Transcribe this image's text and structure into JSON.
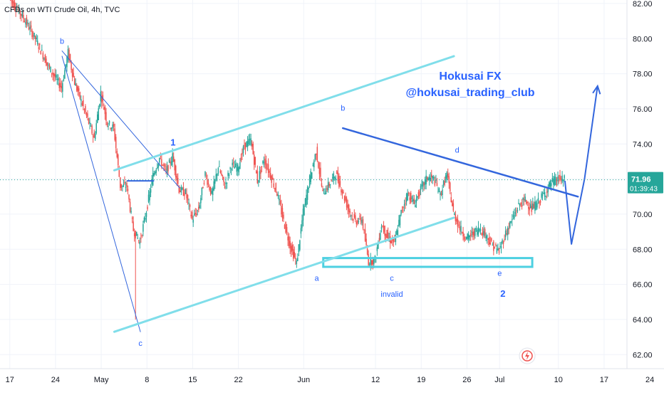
{
  "chart_data": {
    "type": "candlestick",
    "symbol_label": "CFDs on WTI Crude Oil, 4h, TVC",
    "watermark_line1": "Hokusai FX",
    "watermark_line2": "@hokusai_trading_club",
    "ylim": [
      61.2,
      82.2
    ],
    "xlim": [
      -1.5,
      94.5
    ],
    "y_ticks": [
      "62.00",
      "64.00",
      "66.00",
      "68.00",
      "70.00",
      "72.00",
      "74.00",
      "76.00",
      "78.00",
      "80.00",
      "82.00"
    ],
    "x_ticks": [
      {
        "label": "17",
        "day": 0
      },
      {
        "label": "24",
        "day": 7
      },
      {
        "label": "May",
        "day": 14
      },
      {
        "label": "8",
        "day": 21
      },
      {
        "label": "15",
        "day": 28
      },
      {
        "label": "22",
        "day": 35
      },
      {
        "label": "Jun",
        "day": 45
      },
      {
        "label": "12",
        "day": 56
      },
      {
        "label": "19",
        "day": 63
      },
      {
        "label": "26",
        "day": 70
      },
      {
        "label": "Jul",
        "day": 75
      },
      {
        "label": "10",
        "day": 84
      },
      {
        "label": "17",
        "day": 91
      },
      {
        "label": "24",
        "day": 98
      }
    ],
    "last_price": {
      "value": 71.96,
      "label": "71.96",
      "countdown": "01:39:43"
    },
    "colors": {
      "up": "#26a69a",
      "down": "#ef5350",
      "trend_dark": "#3366dd",
      "trend_light": "#80deea",
      "channel": "#4dd0e1",
      "dotted": "#26a69a",
      "label": "#2962ff"
    },
    "path": [
      [
        0,
        82.3
      ],
      [
        2,
        81.3
      ],
      [
        4,
        80.0
      ],
      [
        6,
        78.4
      ],
      [
        8,
        77.2
      ],
      [
        9,
        79.2
      ],
      [
        10,
        77.5
      ],
      [
        12,
        75.4
      ],
      [
        13,
        74.3
      ],
      [
        14,
        76.9
      ],
      [
        15,
        75.2
      ],
      [
        16,
        74.9
      ],
      [
        17,
        71.6
      ],
      [
        18,
        71.6
      ],
      [
        19,
        69.1
      ],
      [
        20,
        68.4
      ],
      [
        21,
        70.2
      ],
      [
        22,
        72.2
      ],
      [
        23,
        73.2
      ],
      [
        24,
        72.4
      ],
      [
        25,
        73.3
      ],
      [
        26,
        71.4
      ],
      [
        27,
        71.2
      ],
      [
        28,
        69.7
      ],
      [
        29,
        70.3
      ],
      [
        30,
        72.3
      ],
      [
        31,
        71.1
      ],
      [
        32,
        72.7
      ],
      [
        33,
        71.6
      ],
      [
        34,
        72.8
      ],
      [
        35,
        72.6
      ],
      [
        36,
        73.9
      ],
      [
        37,
        74.2
      ],
      [
        38,
        71.9
      ],
      [
        39,
        73.1
      ],
      [
        40,
        72.2
      ],
      [
        41,
        71.2
      ],
      [
        42,
        69.6
      ],
      [
        43,
        68.2
      ],
      [
        44,
        67.2
      ],
      [
        45,
        70.1
      ],
      [
        46,
        72.0
      ],
      [
        47,
        73.6
      ],
      [
        48,
        71.2
      ],
      [
        49,
        71.7
      ],
      [
        50,
        72.3
      ],
      [
        51,
        71.3
      ],
      [
        52,
        70.2
      ],
      [
        53,
        69.6
      ],
      [
        54,
        69.7
      ],
      [
        55,
        67.3
      ],
      [
        56,
        67.4
      ],
      [
        57,
        69.4
      ],
      [
        58,
        68.6
      ],
      [
        59,
        68.4
      ],
      [
        60,
        70.1
      ],
      [
        61,
        71.2
      ],
      [
        62,
        70.6
      ],
      [
        63,
        71.4
      ],
      [
        64,
        72.1
      ],
      [
        65,
        72.0
      ],
      [
        66,
        71.1
      ],
      [
        67,
        72.3
      ],
      [
        68,
        70.1
      ],
      [
        69,
        69.2
      ],
      [
        70,
        68.6
      ],
      [
        71,
        68.9
      ],
      [
        72,
        69.2
      ],
      [
        73,
        68.8
      ],
      [
        74,
        68.2
      ],
      [
        75,
        67.9
      ],
      [
        76,
        68.9
      ],
      [
        77,
        69.7
      ],
      [
        78,
        70.5
      ],
      [
        79,
        70.8
      ],
      [
        80,
        70.3
      ],
      [
        81,
        70.7
      ],
      [
        82,
        71.2
      ],
      [
        83,
        71.8
      ],
      [
        84,
        72.0
      ],
      [
        85,
        71.96
      ]
    ],
    "lines": [
      {
        "name": "down-trendline-b-c",
        "from": [
          8,
          79.0
        ],
        "to": [
          20,
          63.3
        ],
        "color": "trend_dark",
        "width": 1
      },
      {
        "name": "down-trendline-b-1",
        "from": [
          8,
          79.3
        ],
        "to": [
          26,
          71.5
        ],
        "color": "trend_dark",
        "width": 1
      },
      {
        "name": "channel-upper-line",
        "from": [
          16,
          72.5
        ],
        "to": [
          68,
          79.0
        ],
        "color": "trend_light",
        "width": 3
      },
      {
        "name": "channel-lower-line",
        "from": [
          16,
          63.3
        ],
        "to": [
          68,
          69.8
        ],
        "color": "trend_light",
        "width": 3
      },
      {
        "name": "triangle-upper-line",
        "from": [
          51,
          74.9
        ],
        "to": [
          87,
          71.0
        ],
        "color": "trend_dark",
        "width": 2.5
      },
      {
        "name": "pullback-blue-line",
        "from": [
          18,
          71.9
        ],
        "to": [
          22,
          71.9
        ],
        "color": "trend_dark",
        "width": 2
      }
    ],
    "support_zone": {
      "from": [
        48,
        67.5
      ],
      "to": [
        80,
        67.0
      ]
    },
    "projection": [
      [
        85,
        71.9
      ],
      [
        86,
        68.3
      ],
      [
        88,
        72.0
      ],
      [
        90,
        77.3
      ]
    ],
    "wave_labels": [
      {
        "text": "b",
        "day": 8,
        "price": 79.7,
        "color": "#2962ff"
      },
      {
        "text": "c",
        "day": 20,
        "price": 62.5,
        "color": "#2962ff"
      },
      {
        "text": "1",
        "day": 25,
        "price": 73.9,
        "color": "#2962ff"
      },
      {
        "text": "a",
        "day": 47,
        "price": 66.2,
        "color": "#2962ff"
      },
      {
        "text": "b",
        "day": 51,
        "price": 75.9,
        "color": "#2962ff"
      },
      {
        "text": "c",
        "day": 58.5,
        "price": 66.2,
        "color": "#2962ff"
      },
      {
        "text": "invalid",
        "day": 58.5,
        "price": 65.3,
        "color": "#2962ff"
      },
      {
        "text": "d",
        "day": 68.5,
        "price": 73.5,
        "color": "#2962ff"
      },
      {
        "text": "e",
        "day": 75,
        "price": 66.5,
        "color": "#2962ff"
      },
      {
        "text": "2",
        "day": 75.5,
        "price": 65.3,
        "color": "#2962ff"
      }
    ]
  }
}
